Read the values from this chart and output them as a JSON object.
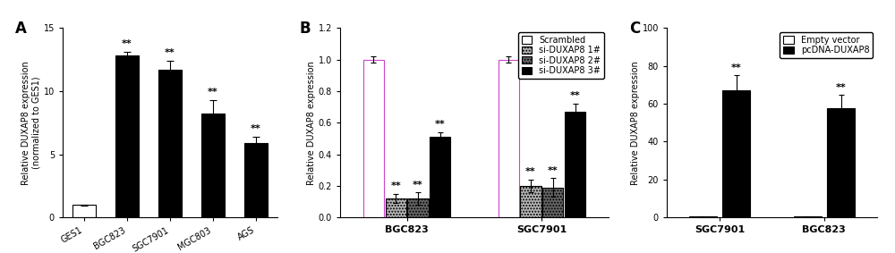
{
  "panel_A": {
    "categories": [
      "GES1",
      "BGC823",
      "SGC7901",
      "MGC803",
      "AGS"
    ],
    "values": [
      1.0,
      12.8,
      11.7,
      8.2,
      5.9
    ],
    "errors": [
      0.05,
      0.3,
      0.7,
      1.1,
      0.5
    ],
    "colors": [
      "white",
      "black",
      "black",
      "black",
      "black"
    ],
    "edgecolors": [
      "black",
      "black",
      "black",
      "black",
      "black"
    ],
    "ylabel": "Relative DUXAP8 expression\n(normalized to GES1)",
    "ylim": [
      0,
      15
    ],
    "yticks": [
      0,
      5,
      10,
      15
    ],
    "panel_label": "A",
    "significance": [
      "",
      "**",
      "**",
      "**",
      "**"
    ]
  },
  "panel_B": {
    "groups": [
      "BGC823",
      "SGC7901"
    ],
    "series": [
      "Scrambled",
      "si-DUXAP8 1#",
      "si-DUXAP8 2#",
      "si-DUXAP8 3#"
    ],
    "values": {
      "BGC823": [
        1.0,
        0.12,
        0.12,
        0.51
      ],
      "SGC7901": [
        1.0,
        0.2,
        0.19,
        0.67
      ]
    },
    "errors": {
      "BGC823": [
        0.02,
        0.03,
        0.04,
        0.03
      ],
      "SGC7901": [
        0.02,
        0.04,
        0.06,
        0.05
      ]
    },
    "colors": [
      "white",
      "#b8b8b8",
      "#686868",
      "black"
    ],
    "hatches": [
      "",
      ".....",
      ".....",
      ""
    ],
    "edgecolors": [
      "#cc44cc",
      "black",
      "black",
      "black"
    ],
    "ylabel": "Relative DUXAP8 expression",
    "ylim": [
      0,
      1.2
    ],
    "yticks": [
      0.0,
      0.2,
      0.4,
      0.6,
      0.8,
      1.0,
      1.2
    ],
    "panel_label": "B",
    "significance": {
      "BGC823": [
        "",
        "**",
        "**",
        "**"
      ],
      "SGC7901": [
        "",
        "**",
        "**",
        "**"
      ]
    }
  },
  "panel_C": {
    "groups": [
      "SGC7901",
      "BGC823"
    ],
    "series": [
      "Empty vector",
      "pcDNA-DUXAP8"
    ],
    "values": {
      "SGC7901": [
        0.5,
        67.0
      ],
      "BGC823": [
        0.5,
        57.5
      ]
    },
    "errors": {
      "SGC7901": [
        0.2,
        8.0
      ],
      "BGC823": [
        0.2,
        7.0
      ]
    },
    "colors": [
      "white",
      "black"
    ],
    "edgecolors": [
      "black",
      "black"
    ],
    "ylabel": "Relative DUXAP8 expression",
    "ylim": [
      0,
      100
    ],
    "yticks": [
      0,
      20,
      40,
      60,
      80,
      100
    ],
    "panel_label": "C",
    "significance": {
      "SGC7901": [
        "",
        "**"
      ],
      "BGC823": [
        "",
        "**"
      ]
    }
  },
  "figure_bg": "white",
  "font_size": 7,
  "label_font_size": 12
}
